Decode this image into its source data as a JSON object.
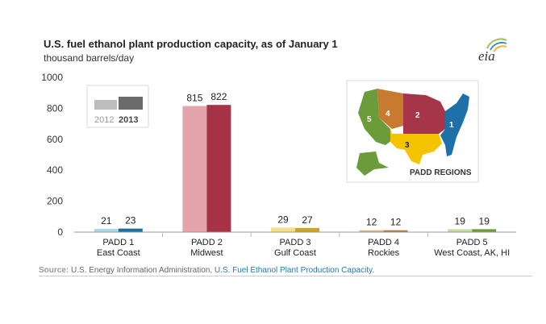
{
  "title": "U.S. fuel ethanol plant production capacity,  as of January 1",
  "subtitle": "thousand barrels/day",
  "logo_text": "eia",
  "source": {
    "label": "Source:",
    "text": " U.S. Energy Information Administration, ",
    "link": "U.S. Fuel Ethanol Plant Production Capacity",
    "end": "."
  },
  "legend": {
    "items": [
      "2012",
      "2013"
    ]
  },
  "map": {
    "caption": "PADD REGIONS",
    "region_labels": [
      "1",
      "2",
      "3",
      "4",
      "5"
    ]
  },
  "colors": {
    "padd1": [
      "#a8d8ea",
      "#1c6fa0"
    ],
    "padd2": [
      "#e3a4ac",
      "#a63446"
    ],
    "padd3": [
      "#f6dd86",
      "#c9a425"
    ],
    "padd4": [
      "#dcb48c",
      "#b0763a"
    ],
    "padd5": [
      "#c6dca2",
      "#6e9a3a"
    ],
    "legend": [
      "#bdbdbd",
      "#6b6b6b"
    ],
    "map": {
      "p1": "#1f6fa8",
      "p2": "#a7354a",
      "p3": "#f5c400",
      "p4": "#c87a30",
      "p5": "#6c9c3a"
    }
  },
  "chart_data": {
    "type": "bar",
    "categories": [
      "PADD 1\nEast Coast",
      "PADD 2\nMidwest",
      "PADD 3\nGulf Coast",
      "PADD 4\nRockies",
      "PADD 5\nWest Coast, AK, HI"
    ],
    "series": [
      {
        "name": "2012",
        "values": [
          21,
          815,
          29,
          12,
          19
        ]
      },
      {
        "name": "2013",
        "values": [
          23,
          822,
          27,
          12,
          19
        ]
      }
    ],
    "ylim": [
      0,
      1000
    ],
    "yticks": [
      0,
      200,
      400,
      600,
      800,
      1000
    ],
    "grid": false,
    "legend_position": "top-left"
  }
}
